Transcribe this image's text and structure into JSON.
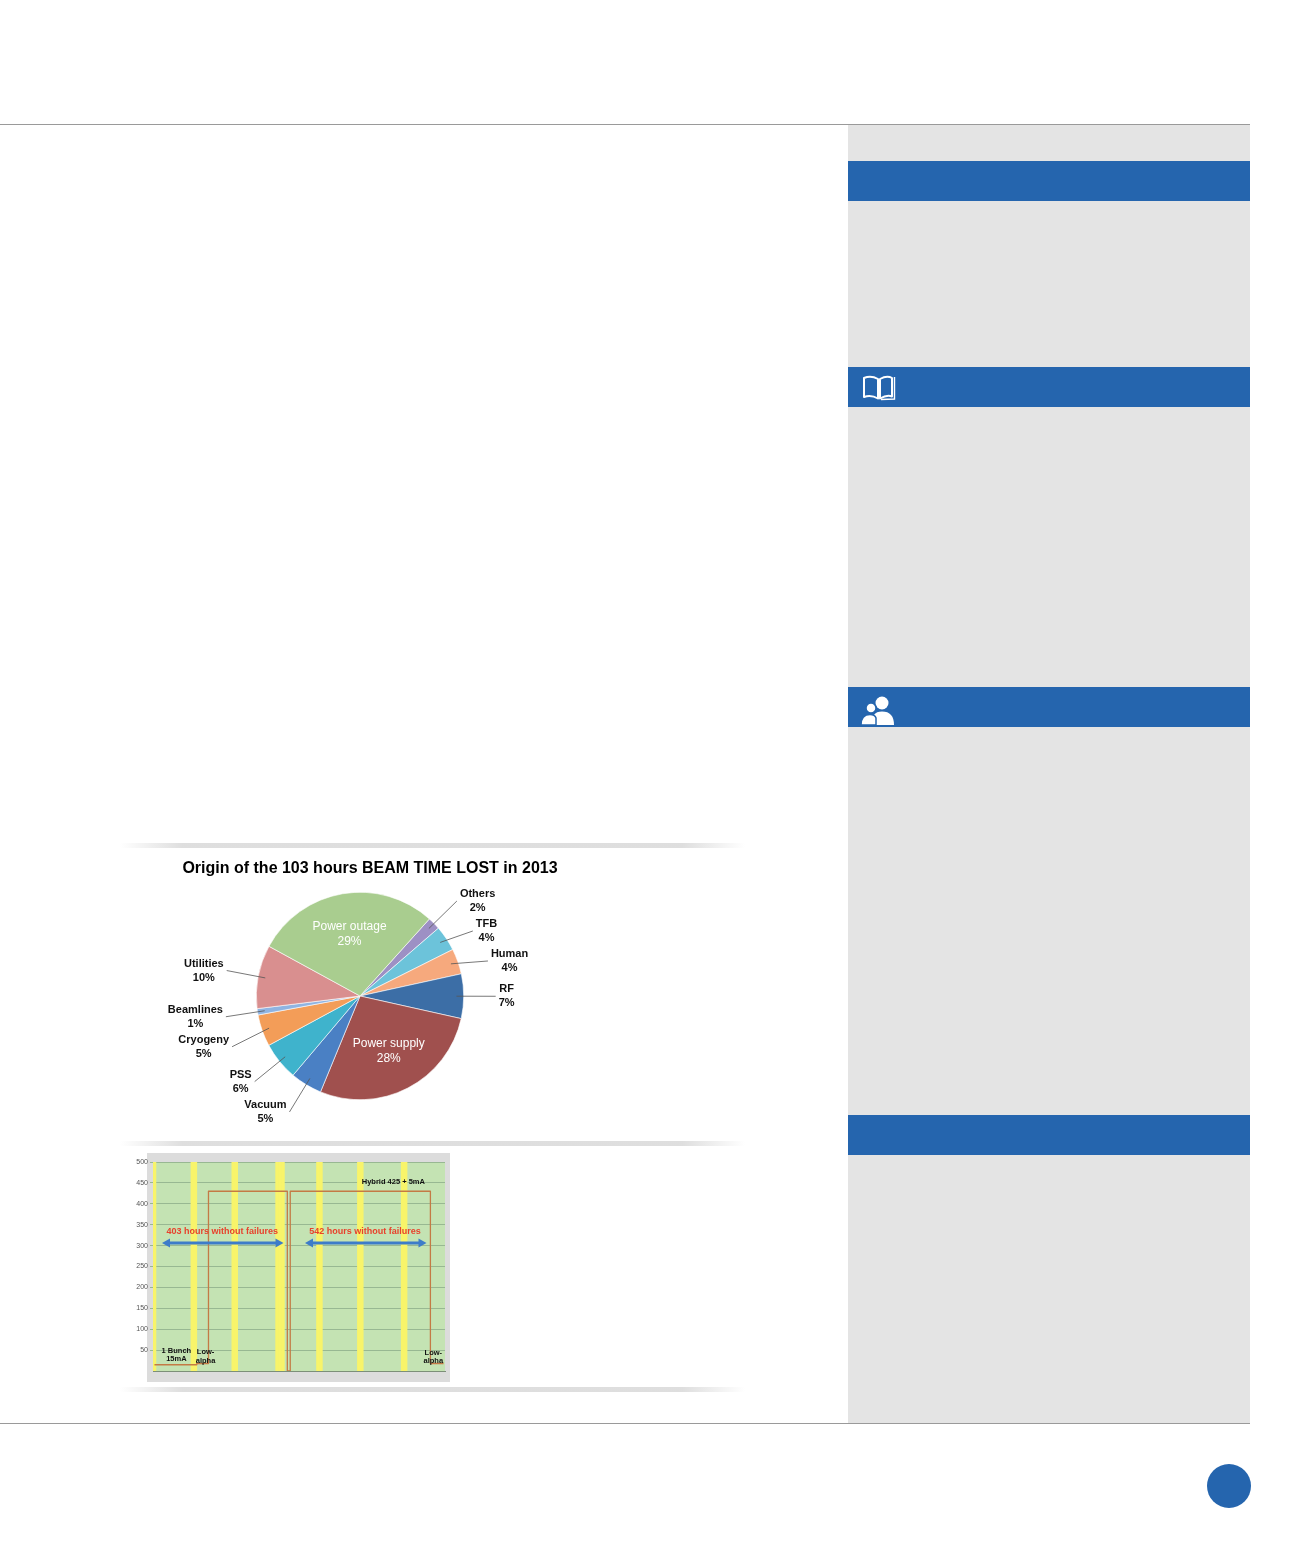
{
  "chart_data": [
    {
      "type": "pie",
      "title": "Origin of the 103 hours BEAM TIME LOST in 2013",
      "categories": [
        "Others",
        "TFB",
        "Human",
        "RF",
        "Power supply",
        "Vacuum",
        "PSS",
        "Cryogeny",
        "Beamlines",
        "Utilities",
        "Power outage"
      ],
      "values": [
        2,
        4,
        4,
        7,
        28,
        5,
        6,
        5,
        1,
        10,
        29
      ],
      "value_labels": [
        "2%",
        "4%",
        "4%",
        "7%",
        "28%",
        "5%",
        "6%",
        "5%",
        "1%",
        "10%",
        "29%"
      ],
      "colors": [
        "#9d90c4",
        "#6cc3da",
        "#f6a97d",
        "#3c6ea6",
        "#a0504e",
        "#4a80c4",
        "#3fb3cc",
        "#f39d58",
        "#8fb4e2",
        "#d98f8f",
        "#a9cd8f"
      ]
    },
    {
      "type": "step",
      "categories": [
        null,
        null,
        null,
        null,
        null,
        null,
        null,
        null,
        null,
        null,
        null,
        null,
        null,
        null,
        null,
        null,
        null,
        null,
        null,
        null,
        null,
        null,
        null,
        null,
        null,
        null,
        null,
        null,
        null,
        null,
        null,
        null,
        null,
        null,
        null,
        null,
        null,
        null,
        null,
        null,
        null,
        null,
        null,
        null,
        null,
        null,
        null,
        null,
        null,
        null,
        null,
        null,
        null,
        null,
        null,
        null,
        null,
        null,
        null,
        null,
        null,
        null,
        null,
        null,
        null,
        null,
        null,
        null,
        null,
        null,
        null,
        null,
        null,
        null,
        null,
        null,
        null,
        null,
        null,
        null,
        null,
        null,
        null,
        null,
        null,
        null,
        null,
        null,
        null,
        null,
        null,
        null,
        null,
        null,
        null,
        null,
        null,
        null,
        null,
        null
      ],
      "ylim": [
        0,
        500
      ],
      "yticks": [
        50,
        100,
        150,
        200,
        250,
        300,
        350,
        400,
        450,
        500
      ],
      "grid": "y",
      "series": [
        {
          "type": "bar",
          "color": "#f8f46a",
          "values": [
            500,
            null,
            null,
            null,
            null,
            null,
            null,
            null,
            null,
            null,
            null,
            null,
            null,
            500,
            500,
            null,
            null,
            null,
            null,
            null,
            null,
            null,
            null,
            null,
            null,
            null,
            null,
            500,
            500,
            null,
            null,
            null,
            null,
            null,
            null,
            null,
            null,
            null,
            null,
            null,
            null,
            null,
            500,
            500,
            500,
            null,
            null,
            null,
            null,
            null,
            null,
            null,
            null,
            null,
            null,
            null,
            500,
            500,
            null,
            null,
            null,
            null,
            null,
            null,
            null,
            null,
            null,
            null,
            null,
            null,
            500,
            500,
            null,
            null,
            null,
            null,
            null,
            null,
            null,
            null,
            null,
            null,
            null,
            null,
            null,
            500,
            500,
            null,
            null,
            null,
            null,
            null,
            null,
            null,
            null,
            null,
            null,
            null,
            null,
            null
          ]
        },
        {
          "color": "#c47a45",
          "values": [
            15,
            15,
            15,
            15,
            15,
            15,
            15,
            15,
            15,
            15,
            15,
            15,
            15,
            15,
            15,
            18,
            18,
            18,
            18,
            430,
            430,
            430,
            430,
            430,
            430,
            430,
            430,
            430,
            430,
            430,
            430,
            430,
            430,
            430,
            430,
            430,
            430,
            430,
            430,
            430,
            430,
            430,
            430,
            430,
            430,
            430,
            0,
            430,
            430,
            430,
            430,
            430,
            430,
            430,
            430,
            430,
            430,
            430,
            430,
            430,
            430,
            430,
            430,
            430,
            430,
            430,
            430,
            430,
            430,
            430,
            430,
            430,
            430,
            430,
            430,
            430,
            430,
            430,
            430,
            430,
            430,
            430,
            430,
            430,
            430,
            430,
            430,
            430,
            430,
            430,
            430,
            430,
            430,
            430,
            430,
            18,
            18,
            18,
            18,
            18
          ]
        }
      ],
      "annotations": [
        "403 hours without failures",
        "542 hours without failures",
        "Hybrid 425 + 5mA",
        "1 Bunch\n15mA",
        "Low-\nalpha",
        "Low-\nalpha"
      ]
    }
  ]
}
